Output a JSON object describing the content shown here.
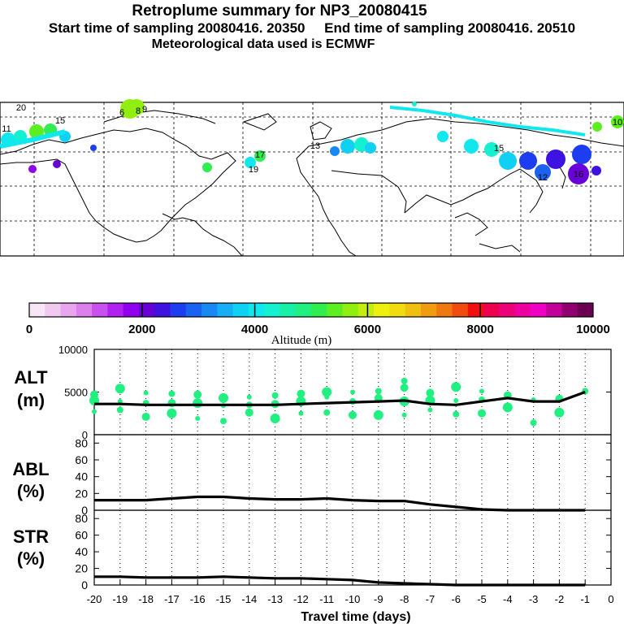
{
  "header": {
    "title": "Retroplume summary for NP3_20080415",
    "sampling_line": "Start time of sampling 20080416. 20350     End time of sampling 20080416. 20510",
    "met_line": "Meteorological data used is ECMWF"
  },
  "colorbar": {
    "label": "Altitude (m)",
    "tick_labels": [
      "0",
      "2000",
      "4000",
      "6000",
      "8000",
      "10000"
    ],
    "colors": [
      "#f6e6f6",
      "#f0c8f0",
      "#e8a6ee",
      "#dc80ee",
      "#c850ee",
      "#b020ee",
      "#9000ee",
      "#6a00d8",
      "#3e12e0",
      "#1c3ef0",
      "#1a62f0",
      "#1888f2",
      "#18aef6",
      "#10d0f4",
      "#10e8ee",
      "#14f0d0",
      "#18f0a8",
      "#20f080",
      "#30ee50",
      "#5cee20",
      "#90ee10",
      "#c4ee10",
      "#eef010",
      "#f0dc10",
      "#f0c010",
      "#f09c10",
      "#f07810",
      "#f04c10",
      "#f01010",
      "#ee0050",
      "#ee0078",
      "#ee00a0",
      "#ee00c4",
      "#c4009a",
      "#900070",
      "#6c0050"
    ]
  },
  "map": {
    "labels": [
      {
        "text": "20",
        "color": "#5cee20"
      },
      {
        "text": "11",
        "color": "#14f0d0"
      },
      {
        "text": "15",
        "color": "#5cee20"
      },
      {
        "text": "6",
        "color": "#5cee20"
      },
      {
        "text": "8",
        "color": "#90ee10"
      },
      {
        "text": "9",
        "color": "#90ee10"
      },
      {
        "text": "17",
        "color": "#14f0d0"
      },
      {
        "text": "19",
        "color": "#14f0d0"
      },
      {
        "text": "13",
        "color": "#10e8ee"
      },
      {
        "text": "16",
        "color": "#1c3ef0"
      },
      {
        "text": "12",
        "color": "#1a62f0"
      },
      {
        "text": "15",
        "color": "#14f0d0"
      },
      {
        "text": "10",
        "color": "#5cee20"
      }
    ]
  },
  "chart_data": [
    {
      "type": "scatter",
      "panel": "ALT",
      "ylabel_line1": "ALT",
      "ylabel_line2": "(m)",
      "ylim": [
        0,
        10000
      ],
      "y_ticks": [
        10000,
        5000,
        0
      ],
      "x": [
        -20,
        -19,
        -18,
        -17,
        -16,
        -15,
        -14,
        -13,
        -12,
        -11,
        -10,
        -9,
        -8,
        -7,
        -6,
        -5,
        -4,
        -3,
        -2,
        -1
      ],
      "mean_altitude_m": [
        3600,
        3600,
        3500,
        3500,
        3500,
        3500,
        3500,
        3500,
        3600,
        3700,
        3800,
        3900,
        4000,
        3600,
        3500,
        3900,
        4300,
        3900,
        3900,
        5000
      ],
      "particle_points": [
        {
          "x": -20,
          "y": 2700
        },
        {
          "x": -20,
          "y": 4000
        },
        {
          "x": -20,
          "y": 4700
        },
        {
          "x": -19,
          "y": 2900
        },
        {
          "x": -19,
          "y": 3900
        },
        {
          "x": -19,
          "y": 5400
        },
        {
          "x": -18,
          "y": 2100
        },
        {
          "x": -18,
          "y": 3700
        },
        {
          "x": -18,
          "y": 4900
        },
        {
          "x": -17,
          "y": 2500
        },
        {
          "x": -17,
          "y": 3700
        },
        {
          "x": -17,
          "y": 4800
        },
        {
          "x": -16,
          "y": 1900
        },
        {
          "x": -16,
          "y": 3700
        },
        {
          "x": -16,
          "y": 4700
        },
        {
          "x": -15,
          "y": 1600
        },
        {
          "x": -15,
          "y": 3400
        },
        {
          "x": -15,
          "y": 4300
        },
        {
          "x": -14,
          "y": 2600
        },
        {
          "x": -14,
          "y": 3500
        },
        {
          "x": -14,
          "y": 4400
        },
        {
          "x": -13,
          "y": 1900
        },
        {
          "x": -13,
          "y": 3600
        },
        {
          "x": -13,
          "y": 4600
        },
        {
          "x": -12,
          "y": 2500
        },
        {
          "x": -12,
          "y": 3900
        },
        {
          "x": -12,
          "y": 4800
        },
        {
          "x": -11,
          "y": 2600
        },
        {
          "x": -11,
          "y": 4400
        },
        {
          "x": -11,
          "y": 5000
        },
        {
          "x": -10,
          "y": 2300
        },
        {
          "x": -10,
          "y": 3900
        },
        {
          "x": -10,
          "y": 5000
        },
        {
          "x": -9,
          "y": 2300
        },
        {
          "x": -9,
          "y": 4300
        },
        {
          "x": -9,
          "y": 5100
        },
        {
          "x": -8,
          "y": 2300
        },
        {
          "x": -8,
          "y": 3900
        },
        {
          "x": -8,
          "y": 5500
        },
        {
          "x": -8,
          "y": 6300
        },
        {
          "x": -7,
          "y": 2900
        },
        {
          "x": -7,
          "y": 4000
        },
        {
          "x": -7,
          "y": 4900
        },
        {
          "x": -6,
          "y": 2400
        },
        {
          "x": -6,
          "y": 4000
        },
        {
          "x": -6,
          "y": 5600
        },
        {
          "x": -5,
          "y": 2500
        },
        {
          "x": -5,
          "y": 4100
        },
        {
          "x": -5,
          "y": 5100
        },
        {
          "x": -4,
          "y": 3200
        },
        {
          "x": -4,
          "y": 4600
        },
        {
          "x": -3,
          "y": 1400
        },
        {
          "x": -3,
          "y": 4100
        },
        {
          "x": -2,
          "y": 2600
        },
        {
          "x": -2,
          "y": 4200
        },
        {
          "x": -1,
          "y": 5100
        }
      ]
    },
    {
      "type": "line",
      "panel": "ABL",
      "ylabel_line1": "ABL",
      "ylabel_line2": "(%)",
      "ylim": [
        0,
        90
      ],
      "y_ticks": [
        0,
        20,
        40,
        60,
        80
      ],
      "x": [
        -20,
        -19,
        -18,
        -17,
        -16,
        -15,
        -14,
        -13,
        -12,
        -11,
        -10,
        -9,
        -8,
        -7,
        -6,
        -5,
        -4,
        -3,
        -2,
        -1
      ],
      "values": [
        12,
        12,
        12,
        14,
        16,
        16,
        14,
        13,
        13,
        14,
        12,
        11,
        11,
        7,
        4,
        1,
        0,
        0,
        0,
        0
      ]
    },
    {
      "type": "line",
      "panel": "STR",
      "ylabel_line1": "STR",
      "ylabel_line2": "(%)",
      "ylim": [
        0,
        90
      ],
      "y_ticks": [
        0,
        20,
        40,
        60,
        80
      ],
      "x": [
        -20,
        -19,
        -18,
        -17,
        -16,
        -15,
        -14,
        -13,
        -12,
        -11,
        -10,
        -9,
        -8,
        -7,
        -6,
        -5,
        -4,
        -3,
        -2,
        -1
      ],
      "values": [
        10,
        10,
        9,
        9,
        9,
        10,
        9,
        8,
        8,
        7,
        6,
        3,
        2,
        1,
        0,
        0,
        0,
        0,
        0,
        0
      ],
      "xlabel": "Travel time (days)",
      "x_tick_labels": [
        "-20",
        "-19",
        "-18",
        "-17",
        "-16",
        "-15",
        "-14",
        "-13",
        "-12",
        "-11",
        "-10",
        "-9",
        "-8",
        "-7",
        "-6",
        "-5",
        "-4",
        "-3",
        "-2",
        "-1",
        "0"
      ]
    }
  ]
}
